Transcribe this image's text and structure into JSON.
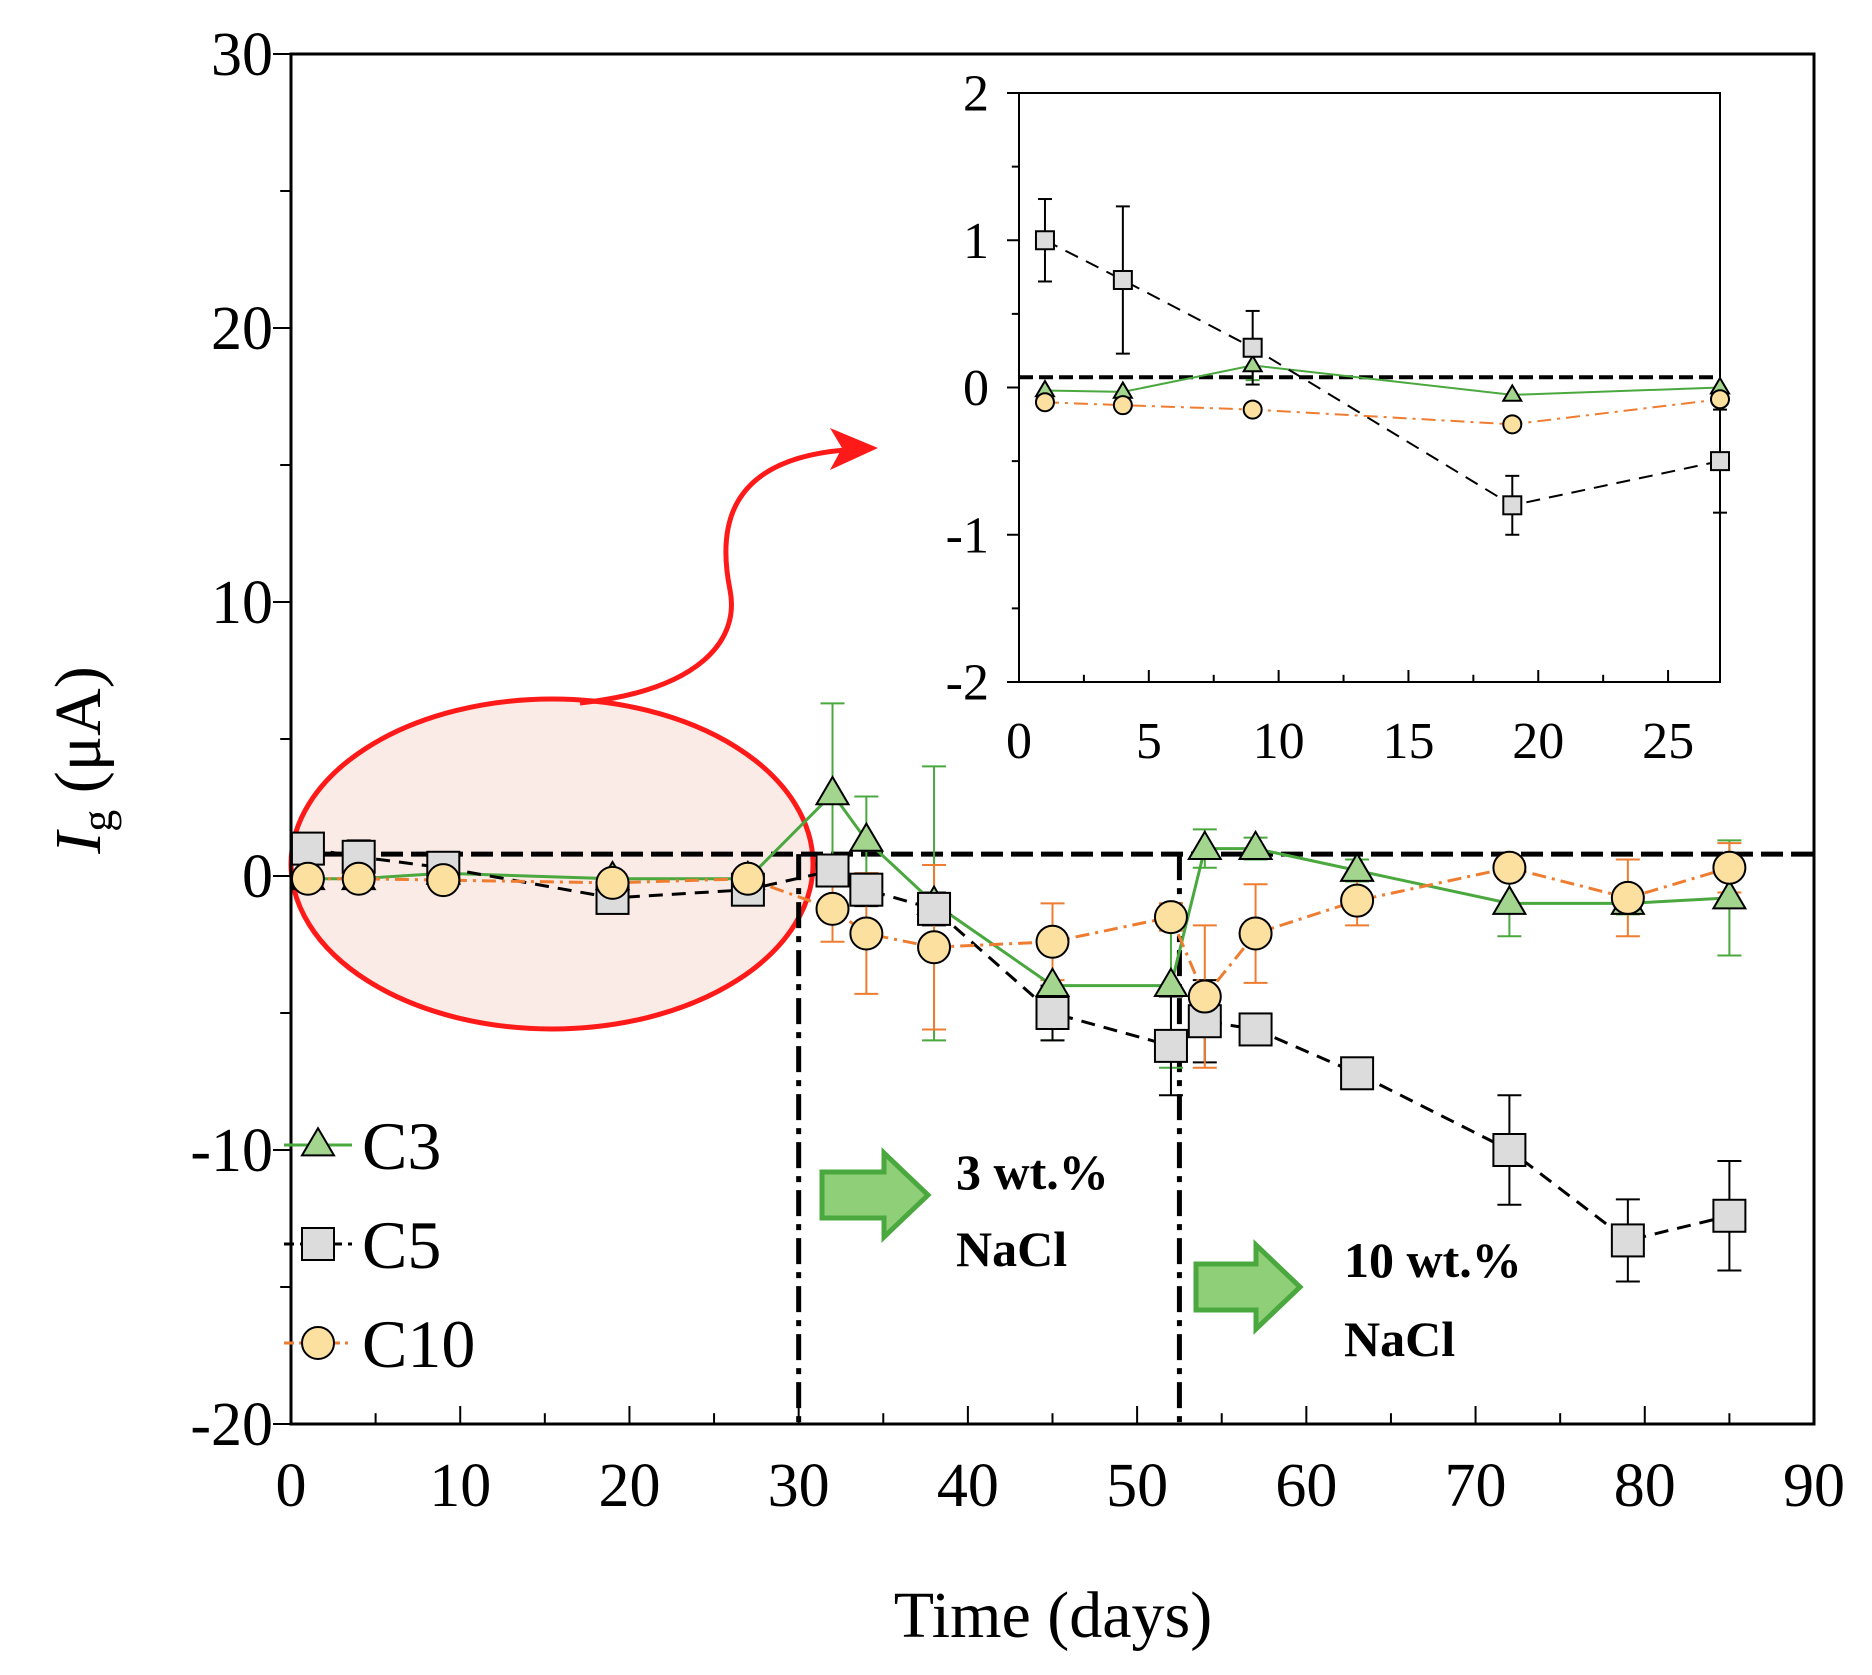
{
  "colors": {
    "c3_line": "#4aa83f",
    "c3_fill": "#a3d58f",
    "c5_line": "#000000",
    "c5_fill": "#dcdcdc",
    "c10_line": "#ee7d31",
    "c10_fill": "#fbe0a0",
    "annotation": "#ff1a1a",
    "ellipse_fill": "#fbebe6",
    "arrow_fill": "#8fcf78",
    "arrow_stroke": "#4aa83f"
  },
  "annotations": {
    "nacl3_line1": "3 wt.%",
    "nacl3_line2": "NaCl",
    "nacl10_line1": "10 wt.%",
    "nacl10_line2": "NaCl"
  },
  "chart_data": [
    {
      "id": "main",
      "type": "line",
      "title": "",
      "xlabel": "Time (days)",
      "ylabel_main": "I",
      "ylabel_sub": "g",
      "ylabel_unit": " (μA)",
      "xlim": [
        0,
        90
      ],
      "ylim": [
        -20,
        30
      ],
      "xticks": [
        0,
        10,
        20,
        30,
        40,
        50,
        60,
        70,
        80,
        90
      ],
      "yticks": [
        -20,
        -10,
        0,
        10,
        20,
        30
      ],
      "xtick_labels": [
        "0",
        "10",
        "20",
        "30",
        "40",
        "50",
        "60",
        "70",
        "80",
        "90"
      ],
      "ytick_labels": [
        "-20",
        "-10",
        "0",
        "10",
        "20",
        "30"
      ],
      "zero_reference": 0.8,
      "vlines": [
        30,
        52.5
      ],
      "legend": [
        "C3",
        "C5",
        "C10"
      ],
      "legend_position": "bottom-left",
      "series": [
        {
          "name": "C3",
          "marker": "triangle",
          "dash": "solid",
          "x": [
            1,
            4,
            9,
            19,
            27,
            32,
            34,
            38,
            45,
            52,
            54,
            57,
            63,
            72,
            79,
            85
          ],
          "y": [
            -0.1,
            -0.1,
            0.1,
            -0.1,
            -0.1,
            3.0,
            1.3,
            -1.0,
            -4.0,
            -4.0,
            1.0,
            1.0,
            0.2,
            -1.0,
            -1.0,
            -0.8
          ],
          "err": [
            0,
            0,
            0,
            0,
            0,
            3.3,
            1.6,
            5.0,
            2.0,
            3.0,
            0.7,
            0.4,
            0.4,
            1.2,
            0.4,
            2.1
          ]
        },
        {
          "name": "C5",
          "marker": "square",
          "dash": "dashed",
          "x": [
            1,
            4,
            9,
            19,
            27,
            32,
            34,
            38,
            45,
            52,
            54,
            57,
            63,
            72,
            79,
            85
          ],
          "y": [
            1.0,
            0.7,
            0.3,
            -0.8,
            -0.5,
            0.2,
            -0.5,
            -1.2,
            -5.0,
            -6.2,
            -5.3,
            -5.6,
            -7.2,
            -10.0,
            -13.3,
            -12.4
          ],
          "err": [
            0.3,
            0.6,
            0.3,
            0.2,
            0.1,
            0.5,
            0.6,
            0.6,
            1.0,
            1.8,
            1.5,
            0.3,
            0.3,
            2.0,
            1.5,
            2.0
          ]
        },
        {
          "name": "C10",
          "marker": "circle",
          "dash": "dashdot",
          "x": [
            1,
            4,
            9,
            19,
            27,
            32,
            34,
            38,
            45,
            52,
            54,
            57,
            63,
            72,
            79,
            85
          ],
          "y": [
            -0.1,
            -0.1,
            -0.15,
            -0.25,
            -0.1,
            -1.2,
            -2.1,
            -2.6,
            -2.4,
            -1.5,
            -4.4,
            -2.1,
            -0.9,
            0.3,
            -0.8,
            0.3
          ],
          "err": [
            0,
            0,
            0,
            0,
            0,
            1.2,
            2.2,
            3.0,
            1.4,
            0.5,
            2.6,
            1.8,
            0.9,
            0.4,
            1.4,
            0.9
          ]
        }
      ]
    },
    {
      "id": "inset",
      "type": "line",
      "title": "",
      "xlim": [
        0,
        27
      ],
      "ylim": [
        -2,
        2
      ],
      "xticks": [
        0,
        5,
        10,
        15,
        20,
        25
      ],
      "yticks": [
        -2,
        -1,
        0,
        1,
        2
      ],
      "xtick_labels": [
        "0",
        "5",
        "10",
        "15",
        "20",
        "25"
      ],
      "ytick_labels": [
        "-2",
        "-1",
        "0",
        "1",
        "2"
      ],
      "zero_reference": 0.07,
      "series": [
        {
          "name": "C3",
          "marker": "triangle",
          "dash": "solid",
          "x": [
            1,
            4,
            9,
            19,
            27
          ],
          "y": [
            -0.02,
            -0.03,
            0.15,
            -0.05,
            0.0
          ],
          "err": [
            0,
            0,
            0.1,
            0,
            0
          ]
        },
        {
          "name": "C5",
          "marker": "square",
          "dash": "dashed",
          "x": [
            1,
            4,
            9,
            19,
            27
          ],
          "y": [
            1.0,
            0.73,
            0.27,
            -0.8,
            -0.5
          ],
          "err": [
            0.28,
            0.5,
            0.25,
            0.2,
            0.35
          ]
        },
        {
          "name": "C10",
          "marker": "circle",
          "dash": "dashdot",
          "x": [
            1,
            4,
            9,
            19,
            27
          ],
          "y": [
            -0.1,
            -0.12,
            -0.15,
            -0.25,
            -0.08
          ],
          "err": [
            0,
            0,
            0,
            0,
            0
          ]
        }
      ]
    }
  ]
}
